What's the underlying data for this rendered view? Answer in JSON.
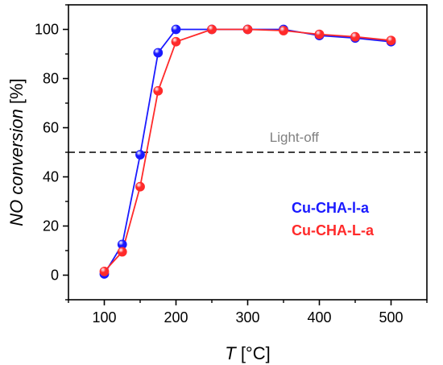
{
  "chart_data": {
    "type": "line",
    "xlabel_var": "T",
    "xlabel_unit": " [°C]",
    "ylabel_var": "NO conversion",
    "ylabel_unit": " [%]",
    "xlim": [
      50,
      550
    ],
    "ylim": [
      -10,
      110
    ],
    "xticks": [
      100,
      200,
      300,
      400,
      500
    ],
    "yticks": [
      0,
      20,
      40,
      60,
      80,
      100
    ],
    "x_minor_step": 50,
    "y_minor_step": 10,
    "grid": false,
    "legend_position": "center-right",
    "series": [
      {
        "name": "Cu-CHA-l-a",
        "color": "#1a1aff",
        "x": [
          100,
          125,
          150,
          175,
          200,
          250,
          300,
          350,
          400,
          450,
          500
        ],
        "y": [
          0.5,
          12.5,
          49,
          90.5,
          100,
          100,
          100,
          100,
          97.5,
          96.5,
          95
        ]
      },
      {
        "name": "Cu-CHA-L-a",
        "color": "#ff2a2a",
        "x": [
          100,
          125,
          150,
          175,
          200,
          250,
          300,
          350,
          400,
          450,
          500
        ],
        "y": [
          1.5,
          9.5,
          36,
          75,
          95,
          100,
          100,
          99.5,
          98,
          97,
          95.5
        ]
      }
    ],
    "reference_line": {
      "y": 50,
      "label": "Light-off",
      "color": "#000000"
    }
  }
}
